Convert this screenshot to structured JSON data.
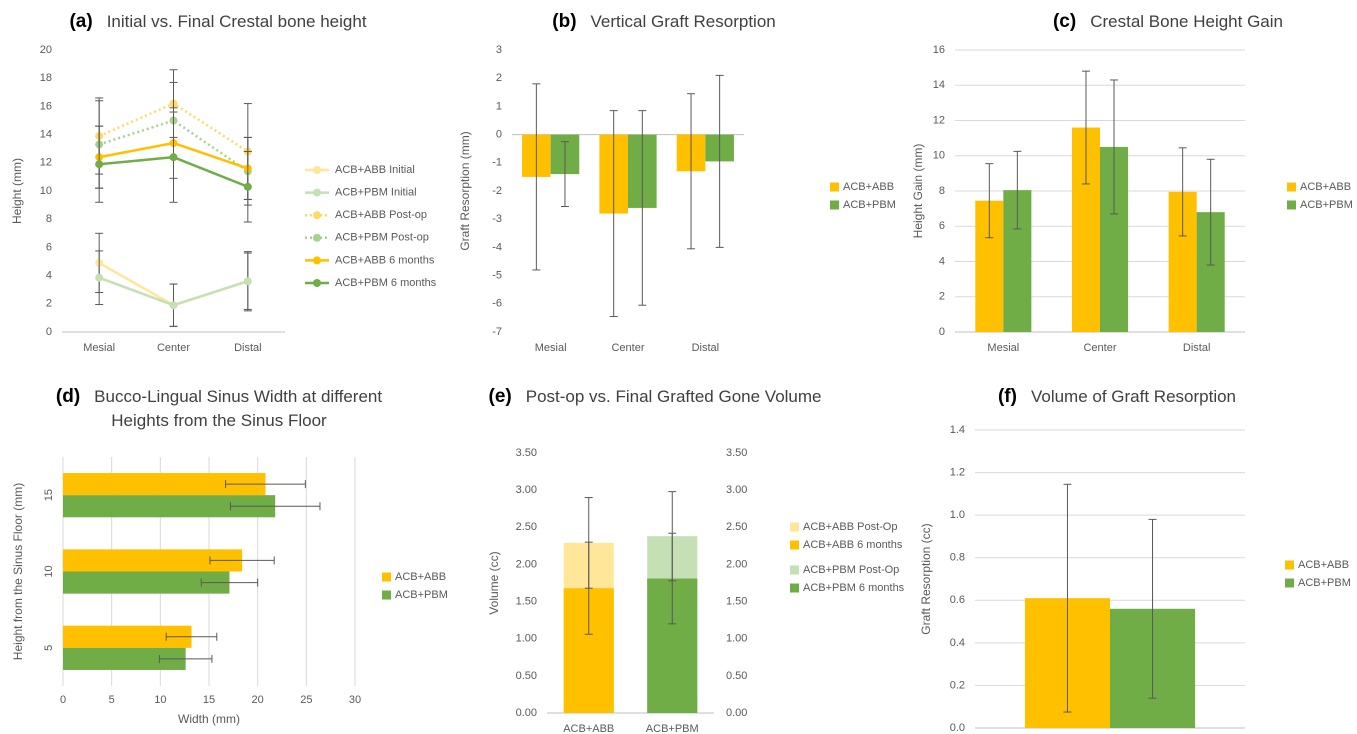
{
  "chart_data": [
    {
      "type": "line",
      "label": "(a)",
      "title": "Initial vs. Final Crestal bone height",
      "ylabel": "Height (mm)",
      "categories": [
        "Mesial",
        "Center",
        "Distal"
      ],
      "ylim": [
        0,
        20
      ],
      "yticks": [
        0,
        2,
        4,
        6,
        8,
        10,
        12,
        14,
        16,
        18,
        20
      ],
      "grid": false,
      "series": [
        {
          "name": "ACB+ABB Initial",
          "color": "#ffe699",
          "line_style": "solid",
          "values": [
            4.9,
            1.9,
            3.6
          ],
          "errors": [
            2.1,
            1.5,
            2.1
          ]
        },
        {
          "name": "ACB+PBM Initial",
          "color": "#c5e0b4",
          "line_style": "solid",
          "values": [
            3.85,
            1.9,
            3.6
          ],
          "errors": [
            1.9,
            1.5,
            2.0
          ]
        },
        {
          "name": "ACB+ABB Post-op",
          "color": "#ffd966",
          "line_style": "dotted",
          "values": [
            13.9,
            16.2,
            12.8
          ],
          "errors": [
            2.7,
            2.4,
            3.4
          ]
        },
        {
          "name": "ACB+PBM Post-op",
          "color": "#a9d18e",
          "line_style": "dotted",
          "values": [
            13.3,
            15.0,
            11.4
          ],
          "errors": [
            3.1,
            2.7,
            2.4
          ]
        },
        {
          "name": "ACB+ABB 6 months",
          "color": "#ffc000",
          "line_style": "solid",
          "values": [
            12.4,
            13.4,
            11.6
          ],
          "errors": [
            2.2,
            2.5,
            2.2
          ]
        },
        {
          "name": "ACB+PBM 6 months",
          "color": "#70ad47",
          "line_style": "solid",
          "values": [
            11.9,
            12.4,
            10.3
          ],
          "errors": [
            2.7,
            3.2,
            2.5
          ]
        }
      ]
    },
    {
      "type": "bar",
      "label": "(b)",
      "title": "Vertical Graft Resorption",
      "ylabel": "Graft Resorption (mm)",
      "categories": [
        "Mesial",
        "Center",
        "Distal"
      ],
      "ylim": [
        -7,
        3
      ],
      "yticks": [
        -7,
        -6,
        -5,
        -4,
        -3,
        -2,
        -1,
        0,
        1,
        2,
        3
      ],
      "grid": false,
      "series": [
        {
          "name": "ACB+ABB",
          "color": "#ffc000",
          "values": [
            -1.5,
            -2.8,
            -1.3
          ],
          "errors": [
            3.3,
            3.65,
            2.75
          ]
        },
        {
          "name": "ACB+PBM",
          "color": "#70ad47",
          "values": [
            -1.4,
            -2.6,
            -0.95
          ],
          "errors": [
            1.15,
            3.45,
            3.05
          ]
        }
      ]
    },
    {
      "type": "bar",
      "label": "(c)",
      "title": "Crestal Bone Height Gain",
      "ylabel": "Height Gain (mm)",
      "categories": [
        "Mesial",
        "Center",
        "Distal"
      ],
      "ylim": [
        0,
        16
      ],
      "yticks": [
        0,
        2,
        4,
        6,
        8,
        10,
        12,
        14,
        16
      ],
      "grid": true,
      "series": [
        {
          "name": "ACB+ABB",
          "color": "#ffc000",
          "values": [
            7.45,
            11.6,
            7.95
          ],
          "errors": [
            2.1,
            3.2,
            2.5
          ]
        },
        {
          "name": "ACB+PBM",
          "color": "#70ad47",
          "values": [
            8.05,
            10.5,
            6.8
          ],
          "errors": [
            2.2,
            3.8,
            3.0
          ]
        }
      ]
    },
    {
      "type": "hbar",
      "label": "(d)",
      "title": "Bucco-Lingual Sinus Width at different Heights from the Sinus Floor",
      "xlabel": "Width (mm)",
      "ylabel": "Height from the Sinus Floor (mm)",
      "categories": [
        "5",
        "10",
        "15"
      ],
      "xlim": [
        0,
        30
      ],
      "xticks": [
        0,
        5,
        10,
        15,
        20,
        25,
        30
      ],
      "grid": true,
      "series": [
        {
          "name": "ACB+ABB",
          "color": "#ffc000",
          "values": [
            13.2,
            18.4,
            20.8
          ],
          "errors": [
            2.6,
            3.3,
            4.1
          ]
        },
        {
          "name": "ACB+PBM",
          "color": "#70ad47",
          "values": [
            12.6,
            17.1,
            21.8
          ],
          "errors": [
            2.7,
            2.9,
            4.6
          ]
        }
      ]
    },
    {
      "type": "bar",
      "label": "(e)",
      "title": "Post-op vs. Final Grafted Gone Volume",
      "ylabel": "Volume (cc)",
      "barmode": "overlay",
      "categories": [
        "ACB+ABB",
        "ACB+PBM"
      ],
      "ylim": [
        0,
        3.5
      ],
      "grid": false,
      "yticks": [
        {
          "value": 0,
          "label": "0.00"
        },
        {
          "value": 0.5,
          "label": "0.50"
        },
        {
          "value": 1,
          "label": "1.00"
        },
        {
          "value": 1.5,
          "label": "1.50"
        },
        {
          "value": 2,
          "label": "2.00"
        },
        {
          "value": 2.5,
          "label": "2.50"
        },
        {
          "value": 3,
          "label": "3.00"
        },
        {
          "value": 3.5,
          "label": "3.50"
        }
      ],
      "y2lim": [
        0,
        3.5
      ],
      "y2ticks": [
        {
          "value": 0,
          "label": "0.00"
        },
        {
          "value": 0.5,
          "label": "0.50"
        },
        {
          "value": 1,
          "label": "1.00"
        },
        {
          "value": 1.5,
          "label": "1.50"
        },
        {
          "value": 2,
          "label": "2.00"
        },
        {
          "value": 2.5,
          "label": "2.50"
        },
        {
          "value": 3,
          "label": "3.00"
        },
        {
          "value": 3.5,
          "label": "3.50"
        }
      ],
      "series": [
        {
          "name": "ACB+ABB Post-Op",
          "color": "#ffe699",
          "values": [
            2.29,
            null
          ],
          "errors": [
            0.61,
            null
          ]
        },
        {
          "name": "ACB+ABB 6 months",
          "color": "#ffc000",
          "values": [
            1.68,
            null
          ],
          "errors": [
            0.62,
            null
          ]
        },
        {
          "name": "ACB+PBM Post-Op",
          "color": "#c5e0b4",
          "values": [
            null,
            2.38
          ],
          "errors": [
            null,
            0.6
          ]
        },
        {
          "name": "ACB+PBM 6 months",
          "color": "#70ad47",
          "values": [
            null,
            1.81
          ],
          "errors": [
            null,
            0.61
          ]
        }
      ]
    },
    {
      "type": "bar",
      "label": "(f)",
      "title": "Volume of Graft Resorption",
      "ylabel": "Graft Resorption (cc)",
      "categories": [
        null
      ],
      "ylim": [
        0,
        1.4
      ],
      "grid": true,
      "yticks": [
        {
          "value": 0,
          "label": "0.0"
        },
        0.2,
        0.4,
        0.6,
        0.8,
        {
          "value": 1,
          "label": "1.0"
        },
        1.2,
        1.4
      ],
      "series": [
        {
          "name": "ACB+ABB",
          "color": "#ffc000",
          "values": [
            0.61
          ],
          "errors": [
            0.535
          ]
        },
        {
          "name": "ACB+PBM",
          "color": "#70ad47",
          "values": [
            0.56
          ],
          "errors": [
            0.42
          ]
        }
      ]
    }
  ]
}
